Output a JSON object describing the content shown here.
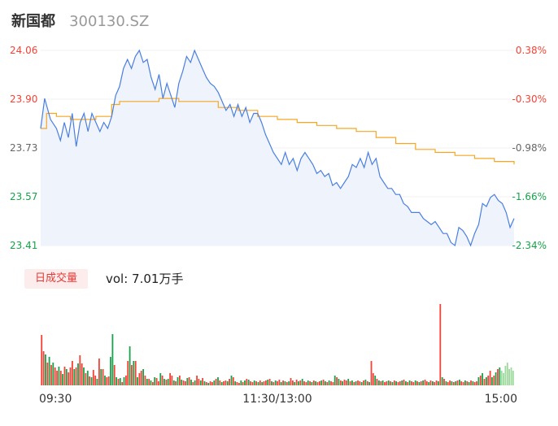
{
  "header": {
    "name": "新国都",
    "code": "300130.SZ"
  },
  "colors": {
    "up": "#f44336",
    "down": "#17a34a",
    "flat": "#666666",
    "price": "#4a7fe0",
    "avg": "#f5a623",
    "area": "#eef3fc"
  },
  "volume_panel": {
    "tag": "日成交量",
    "readout": "vol: 7.01万手"
  },
  "chart_data": [
    {
      "type": "line",
      "title": "",
      "y_left_ticks": [
        "24.06",
        "23.90",
        "23.73",
        "23.57",
        "23.41"
      ],
      "y_right_ticks": [
        "0.38%",
        "-0.30%",
        "-0.98%",
        "-1.66%",
        "-2.34%"
      ],
      "x_ticks": [
        "09:30",
        "11:30/13:00",
        "15:00"
      ],
      "ylim": [
        23.41,
        24.06
      ],
      "x_count": 241,
      "series": [
        {
          "role": "price",
          "points": [
            [
              0,
              23.8
            ],
            [
              2,
              23.9
            ],
            [
              5,
              23.83
            ],
            [
              8,
              23.8
            ],
            [
              10,
              23.76
            ],
            [
              12,
              23.82
            ],
            [
              14,
              23.77
            ],
            [
              16,
              23.85
            ],
            [
              18,
              23.74
            ],
            [
              20,
              23.82
            ],
            [
              22,
              23.85
            ],
            [
              24,
              23.79
            ],
            [
              26,
              23.85
            ],
            [
              28,
              23.82
            ],
            [
              30,
              23.79
            ],
            [
              32,
              23.82
            ],
            [
              34,
              23.8
            ],
            [
              36,
              23.84
            ],
            [
              38,
              23.91
            ],
            [
              40,
              23.94
            ],
            [
              42,
              24.0
            ],
            [
              44,
              24.03
            ],
            [
              46,
              24.0
            ],
            [
              48,
              24.04
            ],
            [
              50,
              24.06
            ],
            [
              52,
              24.02
            ],
            [
              54,
              24.03
            ],
            [
              56,
              23.97
            ],
            [
              58,
              23.93
            ],
            [
              60,
              23.98
            ],
            [
              62,
              23.9
            ],
            [
              64,
              23.95
            ],
            [
              66,
              23.91
            ],
            [
              68,
              23.87
            ],
            [
              70,
              23.95
            ],
            [
              72,
              23.99
            ],
            [
              74,
              24.04
            ],
            [
              76,
              24.02
            ],
            [
              78,
              24.06
            ],
            [
              80,
              24.03
            ],
            [
              82,
              24.0
            ],
            [
              84,
              23.97
            ],
            [
              86,
              23.95
            ],
            [
              88,
              23.94
            ],
            [
              90,
              23.92
            ],
            [
              92,
              23.89
            ],
            [
              94,
              23.86
            ],
            [
              96,
              23.88
            ],
            [
              98,
              23.84
            ],
            [
              100,
              23.88
            ],
            [
              102,
              23.84
            ],
            [
              104,
              23.87
            ],
            [
              106,
              23.82
            ],
            [
              108,
              23.85
            ],
            [
              110,
              23.85
            ],
            [
              112,
              23.82
            ],
            [
              114,
              23.78
            ],
            [
              116,
              23.75
            ],
            [
              118,
              23.72
            ],
            [
              120,
              23.7
            ],
            [
              122,
              23.68
            ],
            [
              124,
              23.72
            ],
            [
              126,
              23.68
            ],
            [
              128,
              23.7
            ],
            [
              130,
              23.66
            ],
            [
              132,
              23.7
            ],
            [
              134,
              23.72
            ],
            [
              136,
              23.7
            ],
            [
              138,
              23.68
            ],
            [
              140,
              23.65
            ],
            [
              142,
              23.66
            ],
            [
              144,
              23.64
            ],
            [
              146,
              23.65
            ],
            [
              148,
              23.61
            ],
            [
              150,
              23.62
            ],
            [
              152,
              23.6
            ],
            [
              154,
              23.62
            ],
            [
              156,
              23.64
            ],
            [
              158,
              23.68
            ],
            [
              160,
              23.67
            ],
            [
              162,
              23.7
            ],
            [
              164,
              23.67
            ],
            [
              166,
              23.72
            ],
            [
              168,
              23.68
            ],
            [
              170,
              23.7
            ],
            [
              172,
              23.64
            ],
            [
              174,
              23.62
            ],
            [
              176,
              23.6
            ],
            [
              178,
              23.6
            ],
            [
              180,
              23.58
            ],
            [
              182,
              23.58
            ],
            [
              184,
              23.55
            ],
            [
              186,
              23.54
            ],
            [
              188,
              23.52
            ],
            [
              190,
              23.52
            ],
            [
              192,
              23.52
            ],
            [
              194,
              23.5
            ],
            [
              196,
              23.49
            ],
            [
              198,
              23.48
            ],
            [
              200,
              23.49
            ],
            [
              202,
              23.47
            ],
            [
              204,
              23.45
            ],
            [
              206,
              23.45
            ],
            [
              208,
              23.42
            ],
            [
              210,
              23.41
            ],
            [
              212,
              23.47
            ],
            [
              214,
              23.46
            ],
            [
              216,
              23.44
            ],
            [
              218,
              23.41
            ],
            [
              220,
              23.45
            ],
            [
              222,
              23.48
            ],
            [
              224,
              23.55
            ],
            [
              226,
              23.54
            ],
            [
              228,
              23.57
            ],
            [
              230,
              23.58
            ],
            [
              232,
              23.56
            ],
            [
              234,
              23.55
            ],
            [
              236,
              23.52
            ],
            [
              238,
              23.47
            ],
            [
              240,
              23.5
            ]
          ]
        },
        {
          "role": "average",
          "points": [
            [
              0,
              23.8
            ],
            [
              3,
              23.85
            ],
            [
              8,
              23.84
            ],
            [
              15,
              23.83
            ],
            [
              21,
              23.83
            ],
            [
              28,
              23.84
            ],
            [
              32,
              23.84
            ],
            [
              36,
              23.88
            ],
            [
              40,
              23.89
            ],
            [
              44,
              23.89
            ],
            [
              48,
              23.89
            ],
            [
              52,
              23.89
            ],
            [
              60,
              23.9
            ],
            [
              70,
              23.89
            ],
            [
              80,
              23.89
            ],
            [
              90,
              23.87
            ],
            [
              100,
              23.86
            ],
            [
              110,
              23.84
            ],
            [
              120,
              23.83
            ],
            [
              130,
              23.82
            ],
            [
              140,
              23.81
            ],
            [
              150,
              23.8
            ],
            [
              160,
              23.79
            ],
            [
              170,
              23.77
            ],
            [
              180,
              23.75
            ],
            [
              190,
              23.73
            ],
            [
              200,
              23.72
            ],
            [
              210,
              23.71
            ],
            [
              220,
              23.7
            ],
            [
              230,
              23.69
            ],
            [
              240,
              23.68
            ]
          ]
        }
      ]
    },
    {
      "type": "bar",
      "title": "",
      "volume_unit": "万手",
      "values": [
        0.62,
        0.42,
        0.38,
        0.28,
        0.35,
        0.25,
        0.28,
        0.22,
        0.18,
        0.23,
        0.18,
        0.14,
        0.23,
        0.2,
        0.16,
        0.22,
        0.3,
        0.2,
        0.22,
        0.27,
        0.37,
        0.27,
        0.22,
        0.15,
        0.18,
        0.11,
        0.1,
        0.19,
        0.12,
        0.08,
        0.33,
        0.2,
        0.2,
        0.12,
        0.1,
        0.11,
        0.35,
        0.63,
        0.25,
        0.1,
        0.08,
        0.09,
        0.04,
        0.1,
        0.12,
        0.3,
        0.48,
        0.25,
        0.3,
        0.3,
        0.1,
        0.15,
        0.18,
        0.2,
        0.12,
        0.08,
        0.08,
        0.06,
        0.04,
        0.1,
        0.09,
        0.05,
        0.15,
        0.12,
        0.08,
        0.07,
        0.08,
        0.15,
        0.12,
        0.06,
        0.05,
        0.1,
        0.12,
        0.07,
        0.06,
        0.05,
        0.09,
        0.1,
        0.07,
        0.04,
        0.06,
        0.12,
        0.08,
        0.06,
        0.09,
        0.05,
        0.04,
        0.03,
        0.05,
        0.04,
        0.06,
        0.08,
        0.1,
        0.06,
        0.04,
        0.05,
        0.06,
        0.05,
        0.08,
        0.12,
        0.1,
        0.05,
        0.04,
        0.03,
        0.06,
        0.04,
        0.06,
        0.08,
        0.07,
        0.05,
        0.04,
        0.06,
        0.05,
        0.04,
        0.06,
        0.04,
        0.05,
        0.06,
        0.07,
        0.08,
        0.05,
        0.04,
        0.06,
        0.05,
        0.07,
        0.04,
        0.06,
        0.05,
        0.04,
        0.05,
        0.09,
        0.06,
        0.04,
        0.07,
        0.05,
        0.06,
        0.08,
        0.05,
        0.04,
        0.06,
        0.05,
        0.04,
        0.06,
        0.05,
        0.04,
        0.05,
        0.06,
        0.07,
        0.05,
        0.04,
        0.06,
        0.05,
        0.04,
        0.12,
        0.1,
        0.08,
        0.06,
        0.05,
        0.07,
        0.06,
        0.08,
        0.05,
        0.06,
        0.04,
        0.05,
        0.06,
        0.05,
        0.04,
        0.06,
        0.07,
        0.05,
        0.04,
        0.3,
        0.15,
        0.12,
        0.08,
        0.06,
        0.05,
        0.06,
        0.04,
        0.05,
        0.06,
        0.05,
        0.04,
        0.06,
        0.05,
        0.04,
        0.05,
        0.06,
        0.07,
        0.05,
        0.04,
        0.06,
        0.05,
        0.04,
        0.06,
        0.05,
        0.04,
        0.05,
        0.06,
        0.07,
        0.05,
        0.04,
        0.06,
        0.05,
        0.04,
        0.06,
        0.05,
        1.0,
        0.1,
        0.08,
        0.05,
        0.04,
        0.06,
        0.05,
        0.04,
        0.05,
        0.06,
        0.07,
        0.05,
        0.04,
        0.06,
        0.05,
        0.04,
        0.06,
        0.05,
        0.04,
        0.05,
        0.1,
        0.12,
        0.15,
        0.08,
        0.1,
        0.12,
        0.18,
        0.1,
        0.12,
        0.16,
        0.2,
        0.22,
        0.18,
        0.15,
        0.24,
        0.28,
        0.2,
        0.22,
        0.18
      ],
      "directions": [
        "up",
        "up",
        "down",
        "up",
        "down",
        "up",
        "down",
        "up",
        "up",
        "down",
        "up",
        "down",
        "up",
        "down",
        "up",
        "up",
        "up",
        "down",
        "up",
        "down",
        "up",
        "up",
        "down",
        "up",
        "down",
        "up",
        "down",
        "up",
        "up",
        "down",
        "up",
        "down",
        "up",
        "down",
        "up",
        "up",
        "down",
        "down",
        "up",
        "down",
        "up",
        "down",
        "up",
        "down",
        "up",
        "up",
        "down",
        "up",
        "down",
        "up",
        "down",
        "up",
        "up",
        "down",
        "up",
        "down",
        "up",
        "down",
        "up",
        "down",
        "up",
        "up",
        "down",
        "up",
        "down",
        "up",
        "down",
        "up",
        "up",
        "down",
        "up",
        "down",
        "up",
        "down",
        "up",
        "up",
        "down",
        "up",
        "down",
        "up",
        "down",
        "up",
        "up",
        "down",
        "up",
        "down",
        "up",
        "down",
        "up",
        "up",
        "down",
        "up",
        "down",
        "up",
        "down",
        "up",
        "up",
        "down",
        "up",
        "down",
        "up",
        "down",
        "up",
        "up",
        "down",
        "up",
        "down",
        "up",
        "down",
        "up",
        "up",
        "down",
        "up",
        "down",
        "up",
        "down",
        "up",
        "up",
        "down",
        "up",
        "down",
        "up",
        "down",
        "up",
        "up",
        "down",
        "up",
        "down",
        "up",
        "down",
        "up",
        "up",
        "down",
        "up",
        "down",
        "up",
        "down",
        "up",
        "up",
        "down",
        "up",
        "down",
        "up",
        "down",
        "up",
        "up",
        "down",
        "up",
        "down",
        "up",
        "down",
        "up",
        "up",
        "down",
        "up",
        "down",
        "up",
        "down",
        "up",
        "up",
        "down",
        "up",
        "down",
        "up",
        "down",
        "up",
        "up",
        "down",
        "up",
        "down",
        "up",
        "down",
        "up",
        "up",
        "down",
        "up",
        "down",
        "up",
        "down",
        "up",
        "up",
        "down",
        "up",
        "down",
        "up",
        "down",
        "up",
        "up",
        "down",
        "up",
        "down",
        "up",
        "down",
        "up",
        "up",
        "down",
        "up",
        "down",
        "up",
        "down",
        "up",
        "up",
        "down",
        "up",
        "down",
        "up",
        "up",
        "down",
        "up",
        "down",
        "up",
        "down",
        "up",
        "up",
        "down",
        "up",
        "down",
        "up",
        "down",
        "up",
        "up",
        "down",
        "up",
        "down",
        "up",
        "down",
        "up",
        "up",
        "down",
        "up",
        "down",
        "up",
        "down",
        "up",
        "up",
        "down",
        "up",
        "down",
        "up",
        "down",
        "flat"
      ]
    }
  ]
}
